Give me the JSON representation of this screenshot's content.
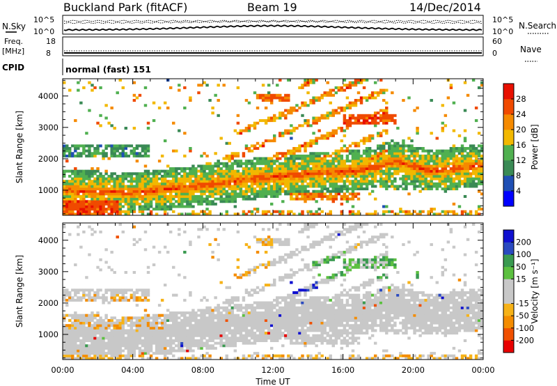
{
  "header": {
    "title": "Buckland Park (fitACF)",
    "beam": "Beam 19",
    "date": "14/Dec/2014"
  },
  "noise_panel": {
    "left_label": "N.Sky",
    "right_label": "N.Search",
    "left_ticks": [
      "10^5",
      "10^0"
    ],
    "right_ticks": [
      "10^5",
      "10^0"
    ]
  },
  "freq_panel": {
    "left_label_1": "Freq.",
    "left_label_2": "[MHz]",
    "right_label": "Nave",
    "left_ticks": [
      "18",
      "8"
    ],
    "right_ticks": [
      "60",
      "0"
    ],
    "cpid_label": "CPID",
    "cpid_text": "normal (fast) 151"
  },
  "colors": {
    "power_scale": [
      "#0000ff",
      "#1f4fb4",
      "#3a8a55",
      "#50b050",
      "#f2b800",
      "#f58a00",
      "#f04a00",
      "#e81000"
    ],
    "velocity_scale": [
      "#e80000",
      "#f05000",
      "#f48c00",
      "#f6b218",
      "#c8c8c8",
      "#c8c8c8",
      "#5cc040",
      "#3a9a50",
      "#2a4ac0",
      "#1010d0"
    ]
  },
  "chart_data": [
    {
      "type": "heatmap",
      "name": "Power",
      "ylabel": "Slant Range [km]",
      "x_ticks": [
        "00:00",
        "04:00",
        "08:00",
        "12:00",
        "16:00",
        "20:00",
        "00:00"
      ],
      "y_ticks": [
        1000,
        2000,
        3000,
        4000
      ],
      "ylim": [
        200,
        4550
      ],
      "xlim_hours": [
        0,
        24
      ],
      "colorbar_label": "Power [dB]",
      "colorbar_ticks": [
        4,
        8,
        12,
        16,
        20,
        24,
        28
      ]
    },
    {
      "type": "heatmap",
      "name": "Velocity",
      "ylabel": "Slant Range [km]",
      "xlabel": "Time UT",
      "x_ticks": [
        "00:00",
        "04:00",
        "08:00",
        "12:00",
        "16:00",
        "20:00",
        "00:00"
      ],
      "y_ticks": [
        1000,
        2000,
        3000,
        4000
      ],
      "ylim": [
        200,
        4550
      ],
      "xlim_hours": [
        0,
        24
      ],
      "colorbar_label": "Velocity [m s⁻¹]",
      "colorbar_ticks": [
        -200,
        -100,
        -50,
        -15,
        15,
        50,
        100,
        200
      ]
    }
  ]
}
